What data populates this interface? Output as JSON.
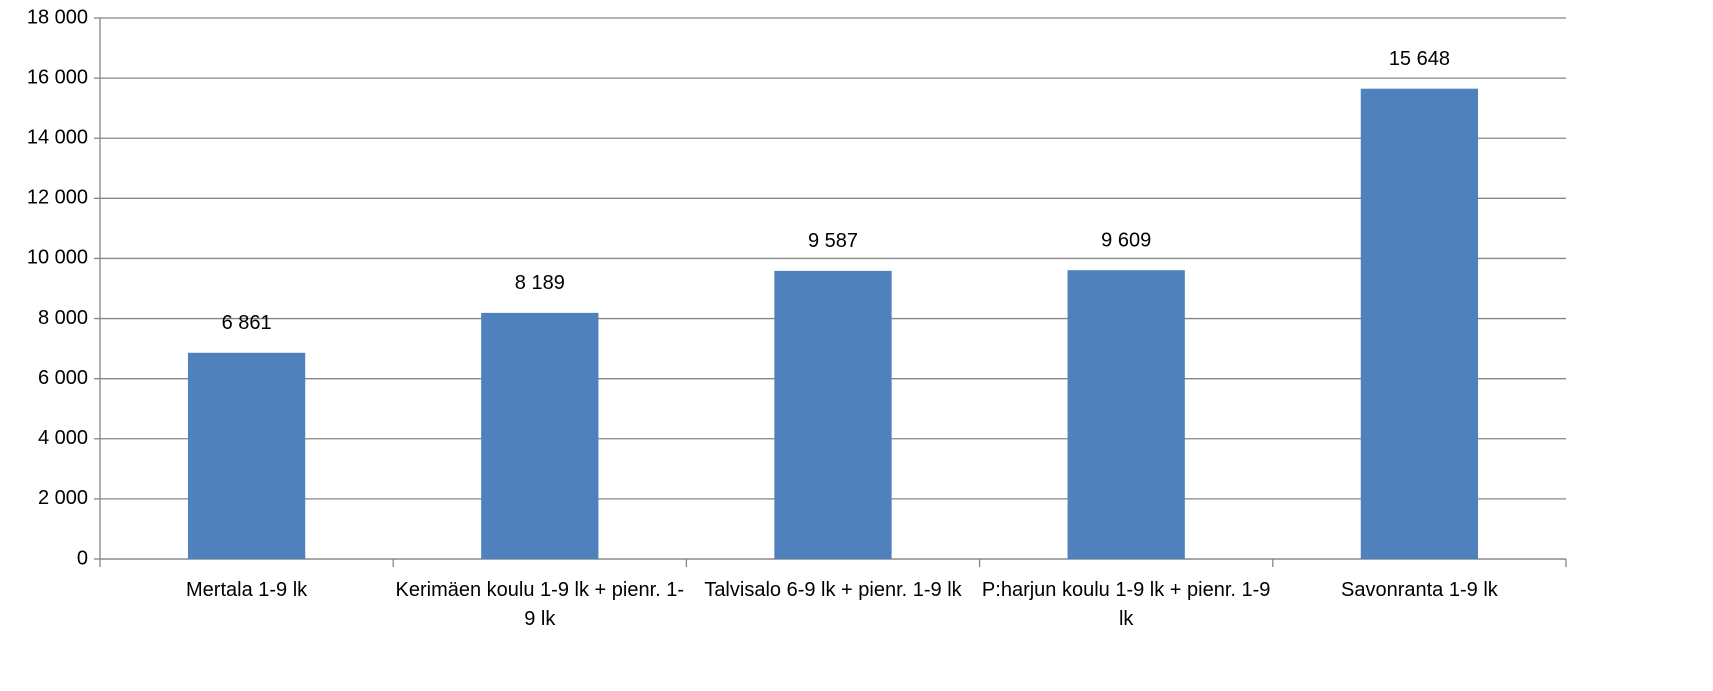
{
  "chart_data": {
    "type": "bar",
    "categories": [
      "Mertala 1-9 lk",
      "Kerimäen koulu 1-9 lk + pienr. 1-9 lk",
      "Talvisalo 6-9 lk + pienr. 1-9 lk",
      "P:harjun koulu 1-9 lk + pienr. 1-9 lk",
      "Savonranta 1-9 lk"
    ],
    "values": [
      6861,
      8189,
      9587,
      9609,
      15648
    ],
    "value_labels": [
      "6 861",
      "8 189",
      "9 587",
      "9 609",
      "15 648"
    ],
    "color": "#4f81bd",
    "ylim": [
      0,
      18000
    ],
    "yticks": [
      0,
      {
        "value": 2000,
        "label": "2 000"
      },
      {
        "value": 4000,
        "label": "4 000"
      },
      {
        "value": 6000,
        "label": "6 000"
      },
      {
        "value": 8000,
        "label": "8 000"
      },
      {
        "value": 10000,
        "label": "10 000"
      },
      {
        "value": 12000,
        "label": "12 000"
      },
      {
        "value": 14000,
        "label": "14 000"
      },
      {
        "value": 16000,
        "label": "16 000"
      },
      {
        "value": 18000,
        "label": "18 000"
      }
    ],
    "grid": true
  }
}
